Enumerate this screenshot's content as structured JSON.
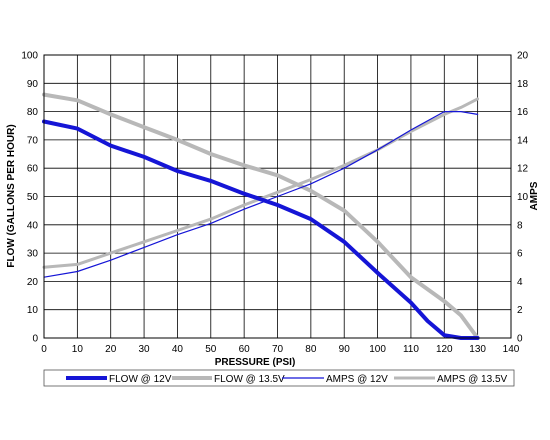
{
  "chart_data": {
    "type": "line",
    "xlabel": "PRESSURE (PSI)",
    "ylabel_left": "FLOW (GALLONS PER HOUR)",
    "ylabel_right": "AMPS",
    "xlim": [
      0,
      140
    ],
    "ylim_left": [
      0,
      100
    ],
    "ylim_right": [
      0,
      20
    ],
    "x_ticks": [
      "0",
      "10",
      "20",
      "30",
      "40",
      "50",
      "60",
      "70",
      "80",
      "90",
      "100",
      "110",
      "120",
      "130",
      "140"
    ],
    "y_left_ticks": [
      "0",
      "10",
      "20",
      "30",
      "40",
      "50",
      "60",
      "70",
      "80",
      "90",
      "100"
    ],
    "y_right_ticks": [
      "0",
      "2",
      "4",
      "6",
      "8",
      "10",
      "12",
      "14",
      "16",
      "18",
      "20"
    ],
    "grid": true,
    "legend_position": "bottom",
    "series": [
      {
        "name": "FLOW @ 12V",
        "axis": "left",
        "color": "#1515d6",
        "style": "thick",
        "x": [
          0,
          10,
          20,
          30,
          40,
          50,
          60,
          65,
          70,
          80,
          90,
          100,
          110,
          115,
          120,
          125,
          130
        ],
        "y": [
          76.5,
          74,
          68,
          64,
          59,
          55.5,
          51,
          49,
          47,
          42,
          34,
          23,
          12.5,
          6,
          1,
          0,
          0
        ]
      },
      {
        "name": "FLOW @ 13.5V",
        "axis": "left",
        "color": "#b8b8b8",
        "style": "thick",
        "x": [
          0,
          10,
          20,
          30,
          40,
          50,
          60,
          70,
          80,
          90,
          100,
          110,
          120,
          125,
          130
        ],
        "y": [
          86,
          84,
          79,
          74.5,
          70,
          65,
          61,
          57.5,
          52,
          45,
          34,
          21.5,
          13,
          8,
          0
        ]
      },
      {
        "name": "AMPS @ 12V",
        "axis": "right",
        "color": "#1515d6",
        "style": "thin",
        "x": [
          0,
          10,
          20,
          30,
          40,
          50,
          60,
          70,
          80,
          90,
          100,
          110,
          120,
          125,
          130
        ],
        "y": [
          4.3,
          4.7,
          5.5,
          6.4,
          7.3,
          8.1,
          9.1,
          10.0,
          10.9,
          12.0,
          13.3,
          14.7,
          16.0,
          16.0,
          15.8
        ]
      },
      {
        "name": "AMPS @ 13.5V",
        "axis": "right",
        "color": "#b8b8b8",
        "style": "thick",
        "x": [
          0,
          10,
          20,
          30,
          40,
          50,
          60,
          70,
          80,
          90,
          100,
          110,
          120,
          125,
          130
        ],
        "y": [
          5.0,
          5.2,
          6.0,
          6.8,
          7.6,
          8.4,
          9.4,
          10.3,
          11.2,
          12.2,
          13.3,
          14.6,
          15.8,
          16.3,
          16.9
        ]
      }
    ]
  }
}
